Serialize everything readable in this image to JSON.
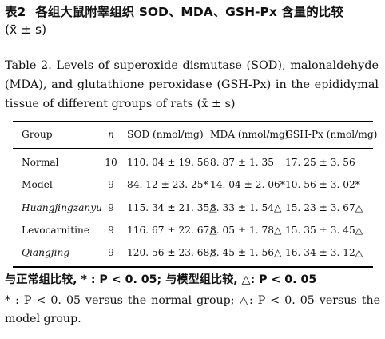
{
  "title_cn": {
    "number": "表2",
    "text": "各组大鼠附睾组织 SOD、MDA、GSH-Px 含量的比较",
    "stat": "(x̄ ± s)"
  },
  "title_en": "Table 2. Levels of superoxide dismutase (SOD), malonaldehyde (MDA), and glutathione peroxidase (GSH-Px) in the epididymal tissue of different groups of rats (x̄ ± s)",
  "table": {
    "headers": {
      "group": "Group",
      "n": "n",
      "sod": "SOD (nmol/mg)",
      "mda": "MDA (nmol/mg)",
      "gsh": "GSH-Px (nmol/mg)"
    },
    "rows": [
      {
        "group": "Normal",
        "n": "10",
        "sod": "110. 04 ± 19. 56",
        "mda": "8. 87 ± 1. 35",
        "gsh": "17. 25 ± 3. 56"
      },
      {
        "group": "Model",
        "n": "9",
        "sod": "84. 12 ± 23. 25*",
        "mda": "14. 04 ± 2. 06*",
        "gsh": "10. 56 ± 3. 02*"
      },
      {
        "group": "Huangjingzanyu",
        "n": "9",
        "sod": "115. 34 ± 21. 35△",
        "mda": "8. 33 ± 1. 54△",
        "gsh": "15. 23 ± 3. 67△"
      },
      {
        "group": "Levocarnitine",
        "n": "9",
        "sod": "116. 67 ± 22. 67△",
        "mda": "8. 05 ± 1. 78△",
        "gsh": "15. 35 ± 3. 45△"
      },
      {
        "group": "Qiangjing",
        "n": "9",
        "sod": "120. 56 ± 23. 68△",
        "mda": "8. 45 ± 1. 56△",
        "gsh": "16. 34 ± 3. 12△"
      }
    ]
  },
  "footnote_cn": "与正常组比较, * : P < 0. 05; 与模型组比较, △: P < 0. 05",
  "footnote_en": "* : P < 0. 05 versus the normal group; △: P < 0. 05 versus the model group."
}
